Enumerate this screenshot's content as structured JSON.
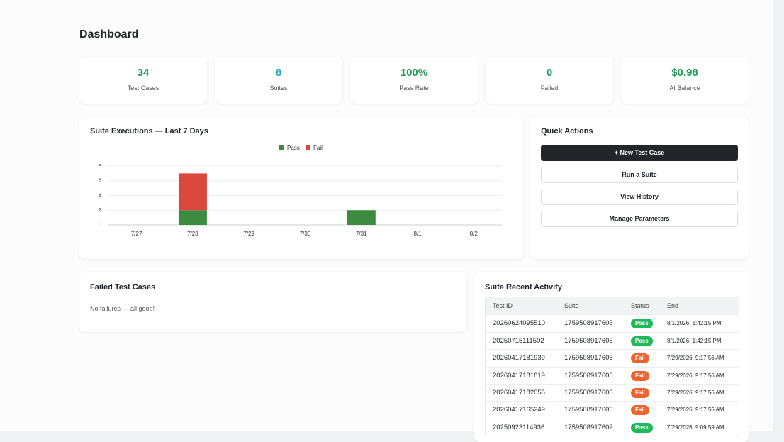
{
  "header": {
    "title": "Dashboard"
  },
  "stats": [
    {
      "value": "34",
      "label": "Test Cases",
      "color": "#1a9a62"
    },
    {
      "value": "8",
      "label": "Suites",
      "color": "#19a8c4"
    },
    {
      "value": "100%",
      "label": "Pass Rate",
      "color": "#1f9d55"
    },
    {
      "value": "0",
      "label": "Failed",
      "color": "#1f9d55"
    },
    {
      "value": "$0.98",
      "label": "AI Balance",
      "color": "#1f9d55"
    }
  ],
  "chart_data": {
    "type": "stacked_bar",
    "title": "Suite Executions — Last 7 Days",
    "categories": [
      "7/27",
      "7/28",
      "7/29",
      "7/30",
      "7/31",
      "8/1",
      "8/2"
    ],
    "series": [
      {
        "name": "Pass",
        "color": "#3d8b40",
        "values": [
          0,
          2,
          0,
          0,
          2,
          0,
          0
        ]
      },
      {
        "name": "Fail",
        "color": "#d9473f",
        "values": [
          0,
          5,
          0,
          0,
          0,
          0,
          0
        ]
      }
    ],
    "ylim": [
      0,
      8
    ],
    "yticks": [
      0,
      2,
      4,
      6,
      8
    ],
    "grid": true
  },
  "quick_actions": {
    "title": "Quick Actions",
    "buttons": [
      "+ New Test Case",
      "Run a Suite",
      "View History",
      "Manage Parameters"
    ]
  },
  "failed_cases": {
    "title": "Failed Test Cases",
    "message": "No failures — all good!"
  },
  "recent_activity": {
    "title": "Suite Recent Activity",
    "status_colors": {
      "Pass": "#22b85a",
      "Fail": "#f0622e"
    },
    "columns": [
      "Test ID",
      "Suite",
      "Status",
      "End"
    ],
    "rows": [
      [
        "20260624095510",
        "1759508917605",
        "Pass",
        "8/1/2026, 1:42:15 PM"
      ],
      [
        "20250715111502",
        "1759508917605",
        "Pass",
        "8/1/2026, 1:42:15 PM"
      ],
      [
        "20260417181939",
        "1759508917606",
        "Fail",
        "7/29/2026, 9:17:56 AM"
      ],
      [
        "20260417181819",
        "1759508917606",
        "Fail",
        "7/29/2026, 9:17:56 AM"
      ],
      [
        "20260417182056",
        "1759508917606",
        "Fail",
        "7/29/2026, 9:17:56 AM"
      ],
      [
        "20260417165249",
        "1759508917606",
        "Fail",
        "7/29/2026, 9:17:55 AM"
      ],
      [
        "20250923114936",
        "1759508917602",
        "Pass",
        "7/29/2026, 9:09:59 AM"
      ]
    ]
  }
}
